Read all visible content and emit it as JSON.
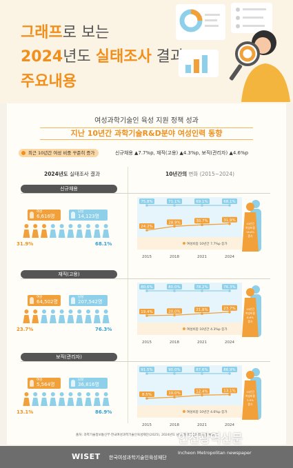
{
  "hero": {
    "line1_hl": "그래프",
    "line1_rest": "로 보는",
    "line2_year": "2024",
    "line2_mid": "년도 ",
    "line2_hl": "실태조사",
    "line2_rest": " 결과",
    "line3": "주요내용"
  },
  "subtitle": "여성과학기술인 육성 지원 정책 성과",
  "headline": "지난 10년간 과학기술R&D분야 여성인력 동향",
  "summary": {
    "pill": "최근 10년간 여성 비중 꾸준히 증가",
    "text": "신규채용 ▲7.7%p, 재직(고용) ▲4.3%p, 보직(관리자) ▲4.6%p"
  },
  "columns": {
    "left_bold": "2024년도",
    "left_gray": " 실태조사 결과",
    "right_bold": "10년간의",
    "right_gray": " 변화 (2015~2024)"
  },
  "colors": {
    "female": "#f2a03a",
    "male": "#8ed0ea",
    "accent": "#f08f1c",
    "dark": "#555555"
  },
  "sections": [
    {
      "title": "신규채용",
      "female_label": "여성",
      "female_count": "6,616명",
      "male_label": "남성",
      "male_count": "14,123명",
      "female_pct": "31.9%",
      "male_pct": "68.1%",
      "female_people": 3,
      "people_total": 10,
      "callout": "여성비중 10년간 7.7%p 증가",
      "side_label": "10년간 여성비중 16.6% 증가"
    },
    {
      "title": "재직(고용)",
      "female_label": "여성",
      "female_count": "64,502명",
      "male_label": "남성",
      "male_count": "207,542명",
      "female_pct": "23.7%",
      "male_pct": "76.3%",
      "female_people": 2.4,
      "people_total": 10,
      "callout": "여성비중 10년간 4.3%p 증가",
      "side_label": "10년간 여성비중 8.6% 증가"
    },
    {
      "title": "보직(관리자)",
      "female_label": "여성",
      "female_count": "5,564명",
      "male_label": "남성",
      "male_count": "36,816명",
      "female_pct": "13.1%",
      "male_pct": "86.9%",
      "female_people": 1.3,
      "people_total": 10,
      "callout": "여성비중 10년간 4.6%p 증가",
      "side_label": "10년간 여성비중 3.9% 증가"
    }
  ],
  "chart_data": [
    {
      "type": "line",
      "categories": [
        "2015",
        "2018",
        "2021",
        "2024"
      ],
      "ylim": [
        0,
        100
      ],
      "series": [
        {
          "name": "남성",
          "values": [
            75.8,
            71.1,
            69.1,
            68.1
          ],
          "labels": [
            "75.8%",
            "71.1%",
            "69.1%",
            "68.1%"
          ]
        },
        {
          "name": "여성",
          "values": [
            24.2,
            28.9,
            30.7,
            31.9
          ],
          "labels": [
            "24.2%",
            "28.9%",
            "30.7%",
            "31.9%"
          ]
        }
      ]
    },
    {
      "type": "line",
      "categories": [
        "2015",
        "2018",
        "2021",
        "2024"
      ],
      "ylim": [
        0,
        100
      ],
      "series": [
        {
          "name": "남성",
          "values": [
            80.6,
            80.0,
            78.2,
            76.3
          ],
          "labels": [
            "80.6%",
            "80.0%",
            "78.2%",
            "76.3%"
          ]
        },
        {
          "name": "여성",
          "values": [
            19.4,
            20.0,
            21.8,
            23.7
          ],
          "labels": [
            "19.4%",
            "20.0%",
            "21.8%",
            "23.7%"
          ]
        }
      ]
    },
    {
      "type": "line",
      "categories": [
        "2015",
        "2018",
        "2021",
        "2024"
      ],
      "ylim": [
        0,
        100
      ],
      "series": [
        {
          "name": "남성",
          "values": [
            91.5,
            90.0,
            87.6,
            86.9
          ],
          "labels": [
            "91.5%",
            "90.0%",
            "87.6%",
            "86.9%"
          ]
        },
        {
          "name": "여성",
          "values": [
            8.5,
            10.0,
            12.4,
            13.1
          ],
          "labels": [
            "8.5%",
            "10.0%",
            "12.4%",
            "13.1%"
          ]
        }
      ]
    }
  ],
  "source": "출처: 과학기술정보통신부·한국여성과학기술인육성재단(2025), 2024년도 남녀 과학기술인력 현황 보고서",
  "footer": {
    "logo": "WISET",
    "org": "한국여성과학기술인육성재단"
  },
  "watermark": {
    "name": "인천광역신문",
    "en": "Incheon Metropolitan newspaper"
  }
}
